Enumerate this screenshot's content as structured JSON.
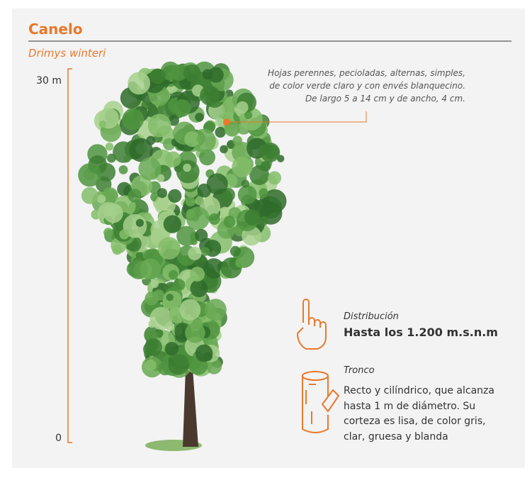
{
  "header": {
    "title": "Canelo",
    "subtitle": "Drimys winteri"
  },
  "scale": {
    "top": "30 m",
    "bottom": "0"
  },
  "leaf_note": {
    "lines": [
      "Hojas perennes, pecioladas, alternas, simples,",
      "de color verde claro y con envés blanquecino.",
      "De largo 5 a 14 cm y de ancho, 4 cm."
    ]
  },
  "distribution": {
    "label": "Distribución",
    "text": "Hasta los 1.200 m.s.n.m"
  },
  "trunk": {
    "label": "Tronco",
    "lines": [
      "Recto y cilíndrico, que alcanza",
      "hasta 1 m de diámetro. Su",
      "corteza es lisa, de color gris,",
      "clar, gruesa y blanda"
    ]
  }
}
